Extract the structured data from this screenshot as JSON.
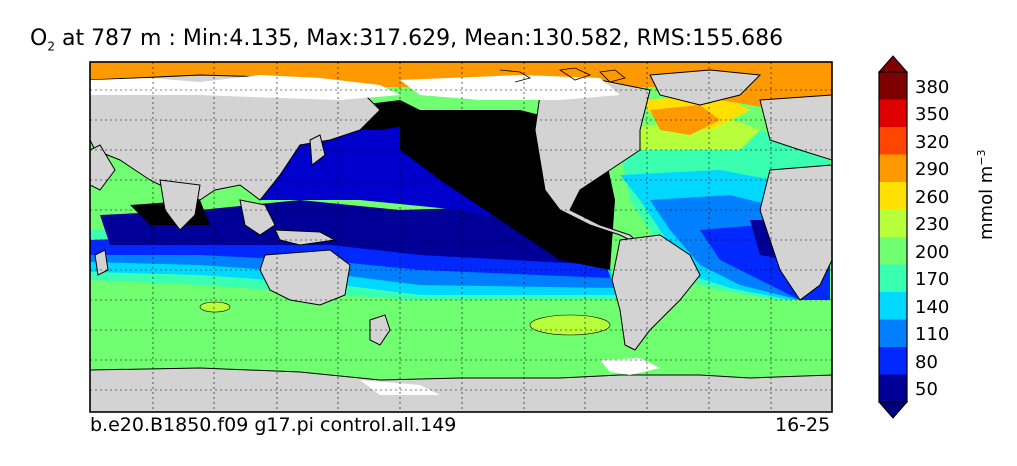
{
  "title": {
    "prefix": "O",
    "subscript": "2",
    "rest": " at 787 m : Min:4.135, Max:317.629, Mean:130.582, RMS:155.686"
  },
  "footer": {
    "case_name": "b.e20.B1850.f09 g17.pi control.all.149",
    "years": "16-25"
  },
  "colorbar": {
    "units_main": "mmol m",
    "units_exp": "−3",
    "labels": [
      "380",
      "350",
      "320",
      "290",
      "260",
      "230",
      "200",
      "170",
      "140",
      "110",
      "80",
      "50"
    ],
    "colors": [
      "#7f0000",
      "#e00000",
      "#ff4500",
      "#ff9900",
      "#ffe000",
      "#b8ff3b",
      "#70ff70",
      "#3bffb0",
      "#00d8ff",
      "#0080ff",
      "#0028ff",
      "#000099"
    ],
    "over_color": "#7f0000",
    "under_color": "#000080",
    "land_color": "#d3d3d3"
  }
}
